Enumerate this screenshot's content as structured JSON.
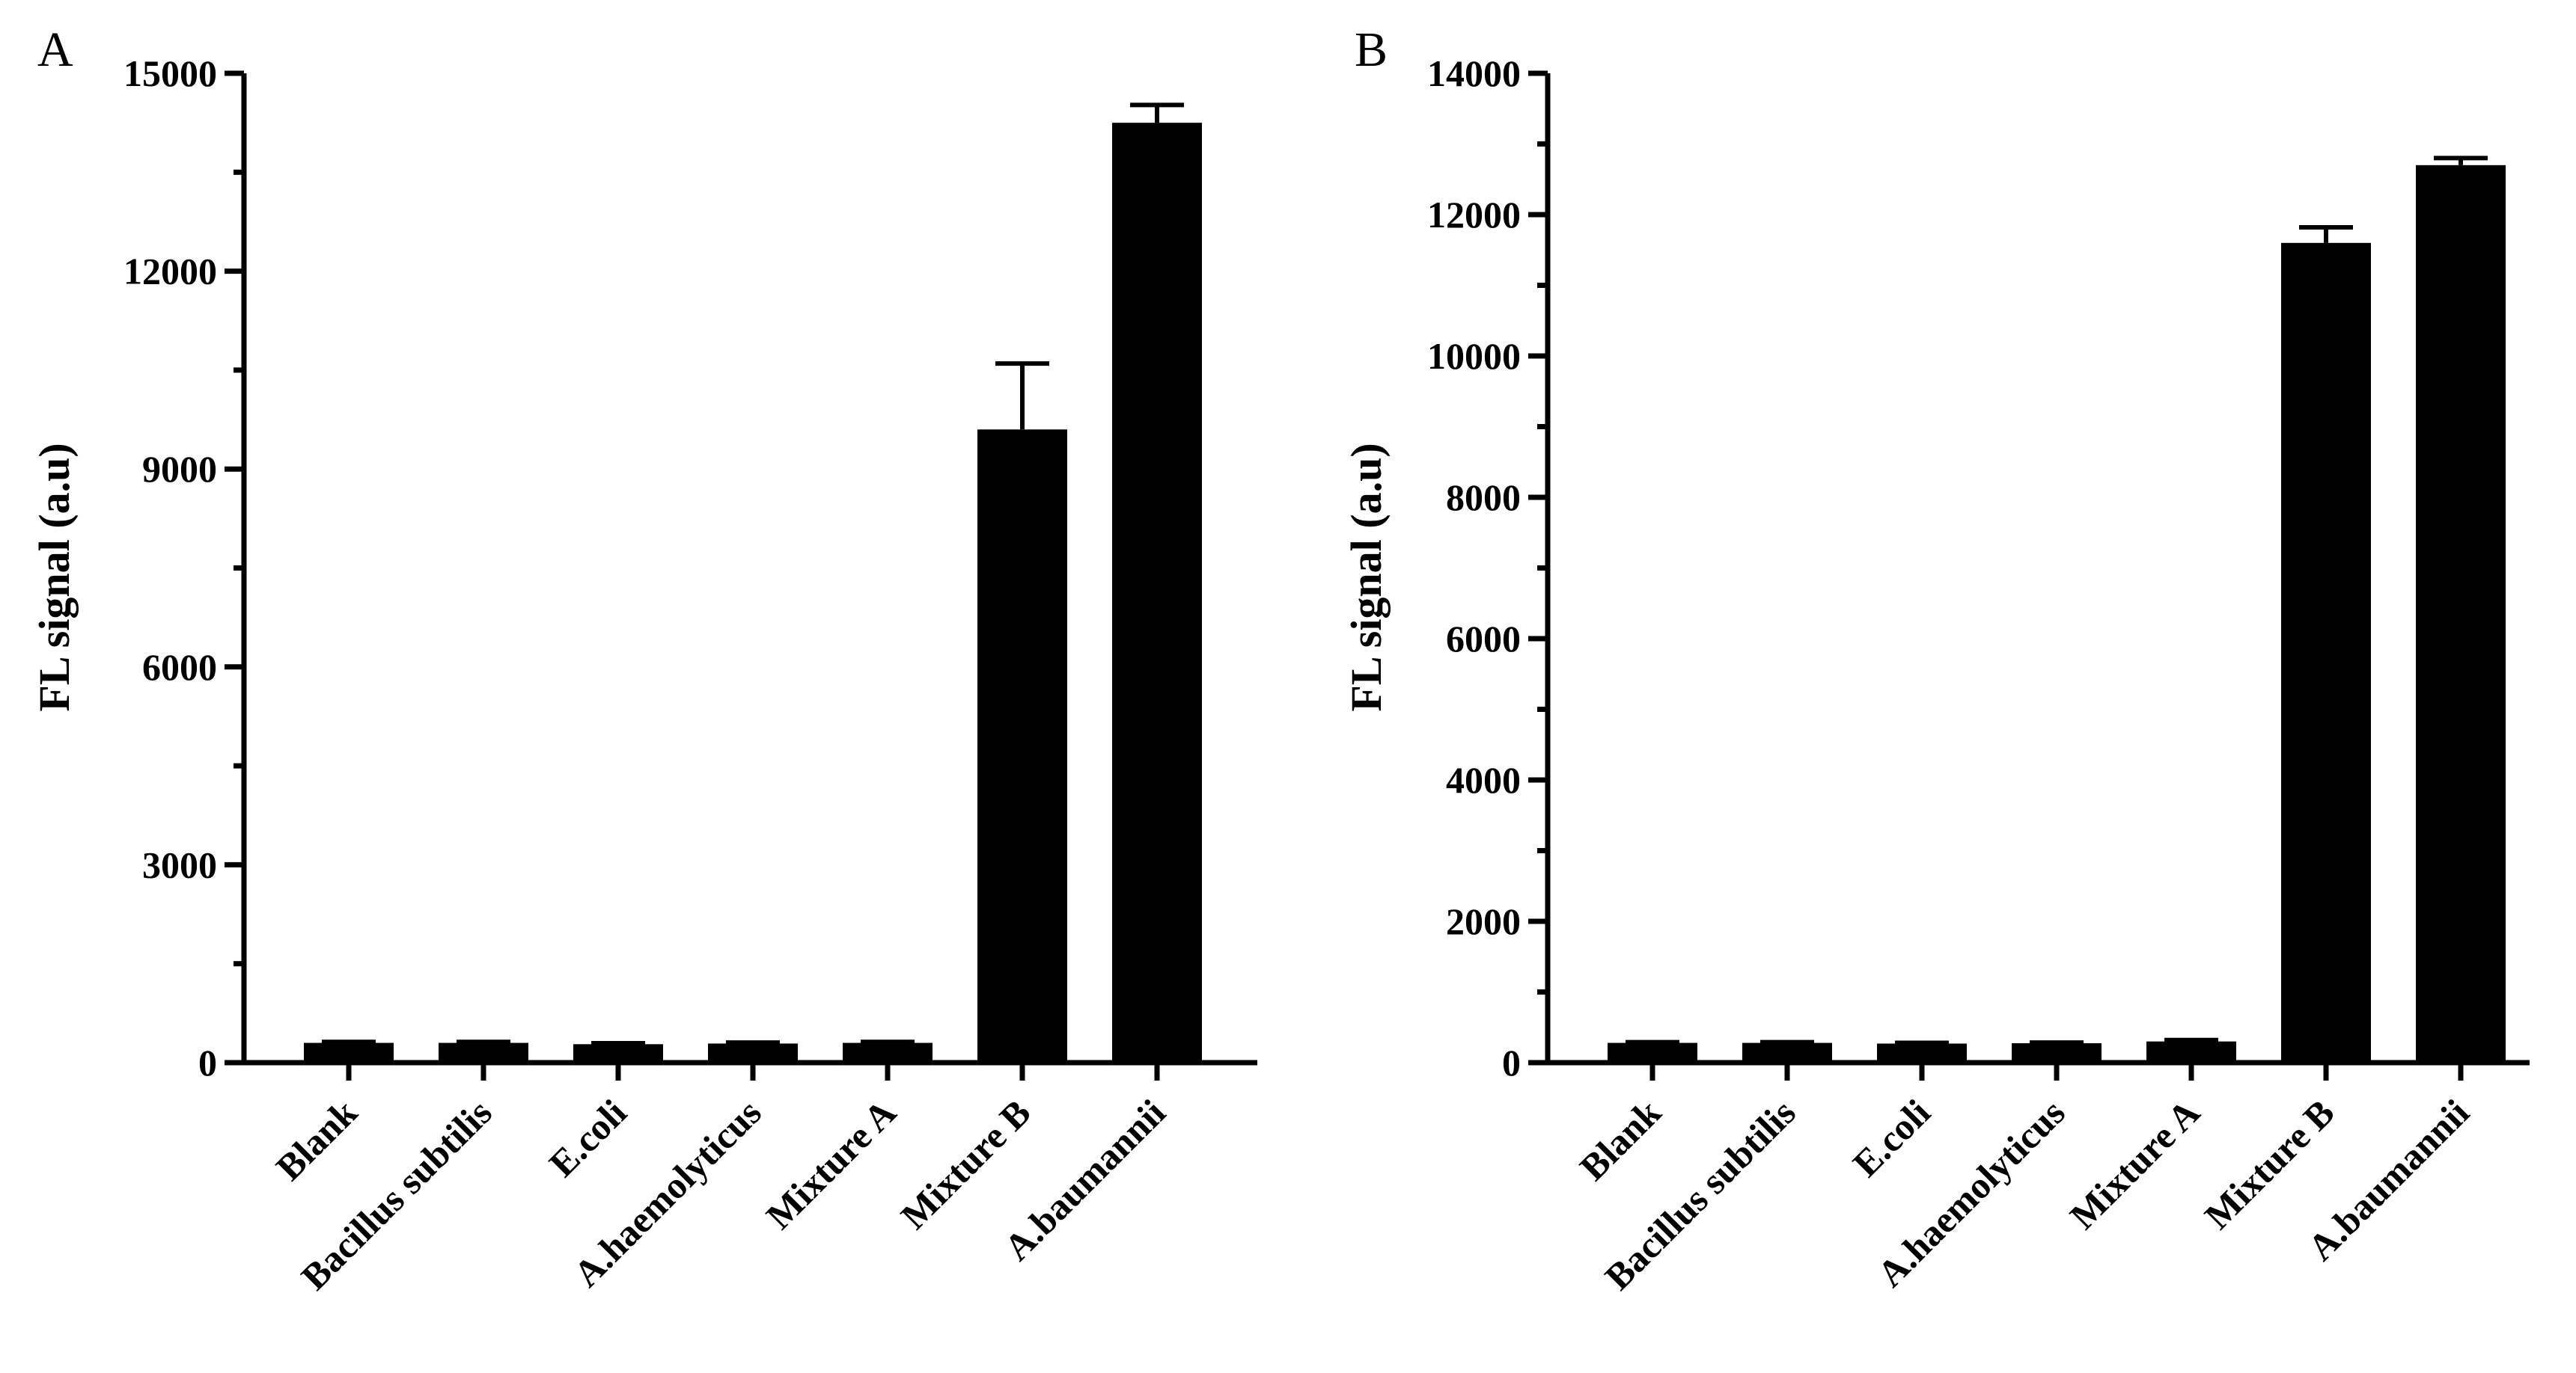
{
  "chart_data": [
    {
      "panel": "A",
      "type": "bar",
      "ylabel": "FL signal (a.u)",
      "ylim": [
        0,
        15000
      ],
      "yticks": [
        0,
        3000,
        6000,
        9000,
        12000,
        15000
      ],
      "minor_ticks_per_interval": 1,
      "categories": [
        "Blank",
        "Bacillus subtilis",
        "E.coli",
        "A.haemolyticus",
        "Mixture A",
        "Mixture B",
        "A.baumannii"
      ],
      "values": [
        300,
        300,
        280,
        290,
        300,
        9600,
        14250
      ],
      "errors": [
        15,
        15,
        15,
        15,
        15,
        1000,
        270
      ],
      "bar_color": "#000000",
      "grid": false,
      "legend": "none"
    },
    {
      "panel": "B",
      "type": "bar",
      "ylabel": "FL signal (a.u)",
      "ylim": [
        0,
        14000
      ],
      "yticks": [
        0,
        2000,
        4000,
        6000,
        8000,
        10000,
        12000,
        14000
      ],
      "minor_ticks_per_interval": 1,
      "categories": [
        "Blank",
        "Bacillus subtilis",
        "E.coli",
        "A.haemolyticus",
        "Mixture A",
        "Mixture B",
        "A.baumannii"
      ],
      "values": [
        280,
        280,
        270,
        275,
        300,
        11600,
        12700
      ],
      "errors": [
        10,
        10,
        10,
        10,
        20,
        220,
        100
      ],
      "bar_color": "#000000",
      "grid": false,
      "legend": "none"
    }
  ]
}
